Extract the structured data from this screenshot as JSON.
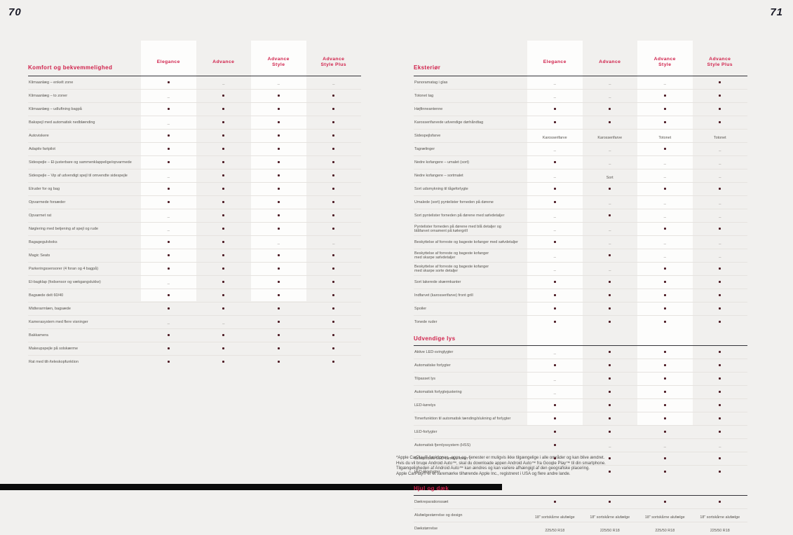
{
  "page": {
    "left_number": "70",
    "right_number": "71"
  },
  "accent_color": "#d0204a",
  "dot_color": "#4e1d26",
  "legend": {
    "included": "●",
    "not_available": "–"
  },
  "columns": [
    "Elegance",
    "Advance",
    "Advance\nStyle",
    "Advance\nStyle Plus"
  ],
  "left_table": {
    "section": "Komfort og bekvemmelighed",
    "rows": [
      {
        "label": "Klimaanlæg – enkelt zone",
        "values": [
          "●",
          "–",
          "–",
          "–"
        ]
      },
      {
        "label": "Klimaanlæg – to zoner",
        "values": [
          "–",
          "●",
          "●",
          "●"
        ]
      },
      {
        "label": "Klimaanlæg – udluftning bagpå",
        "values": [
          "●",
          "●",
          "●",
          "●"
        ]
      },
      {
        "label": "Bakspejl med automatisk nedblænding",
        "values": [
          "–",
          "●",
          "●",
          "●"
        ]
      },
      {
        "label": "Autoviskere",
        "values": [
          "●",
          "●",
          "●",
          "●"
        ]
      },
      {
        "label": "Adaptiv fartpilot",
        "values": [
          "●",
          "●",
          "●",
          "●"
        ]
      },
      {
        "label": "Sidespejle – El-justerbare og sammenklappelige/opvarmede",
        "values": [
          "●",
          "●",
          "●",
          "●"
        ]
      },
      {
        "label": "Sidespejle – Vip af udvendigt spejl til omvendte sidespejle",
        "values": [
          "–",
          "●",
          "●",
          "●"
        ]
      },
      {
        "label": "Elruder for og bag",
        "values": [
          "●",
          "●",
          "●",
          "●"
        ]
      },
      {
        "label": "Opvarmede forsæder",
        "values": [
          "●",
          "●",
          "●",
          "●"
        ]
      },
      {
        "label": "Opvarmet rat",
        "values": [
          "–",
          "●",
          "●",
          "●"
        ]
      },
      {
        "label": "Nøglering med betjening af spejl og rude",
        "values": [
          "–",
          "●",
          "●",
          "●"
        ]
      },
      {
        "label": "Bagagegulvboks",
        "values": [
          "●",
          "●",
          "–",
          "–"
        ]
      },
      {
        "label": "Magic Seats",
        "values": [
          "●",
          "●",
          "●",
          "●"
        ]
      },
      {
        "label": "Parkeringssensorer (4 foran og 4 bagpå)",
        "values": [
          "●",
          "●",
          "●",
          "●"
        ]
      },
      {
        "label": "El-bagklap (fodsensor og vækgangslukke)",
        "values": [
          "–",
          "●",
          "●",
          "●"
        ]
      },
      {
        "label": "Bagsæde delt 60/40",
        "values": [
          "●",
          "●",
          "●",
          "●"
        ]
      },
      {
        "label": "Midterarmlæn, bagsæde",
        "values": [
          "●",
          "●",
          "●",
          "●"
        ]
      },
      {
        "label": "Kamerasystem med flere visninger",
        "values": [
          "–",
          "–",
          "●",
          "●"
        ]
      },
      {
        "label": "Bakkamera",
        "values": [
          "●",
          "●",
          "●",
          "●"
        ]
      },
      {
        "label": "Makeupspejle på solskærme",
        "values": [
          "●",
          "●",
          "●",
          "●"
        ]
      },
      {
        "label": "Rat med tilt-/teleskopfunktion",
        "values": [
          "●",
          "●",
          "●",
          "●"
        ]
      }
    ]
  },
  "right_table": {
    "sections": [
      {
        "title": "Eksteriør",
        "with_column_headers": true,
        "rows": [
          {
            "label": "Panoramatag i glas",
            "values": [
              "–",
              "–",
              "–",
              "●"
            ]
          },
          {
            "label": "Totonet tag",
            "values": [
              "–",
              "–",
              "●",
              "●"
            ]
          },
          {
            "label": "Højfinneantenne",
            "values": [
              "●",
              "●",
              "●",
              "●"
            ]
          },
          {
            "label": "Karosserifarvede udvendige dørhåndtag",
            "values": [
              "●",
              "●",
              "●",
              "●"
            ]
          },
          {
            "label": "Sidespejlsfarve",
            "values": [
              "Karosserifarve",
              "Karosserifarve",
              "Totonet",
              "Totonet"
            ]
          },
          {
            "label": "Tagrælinger",
            "values": [
              "–",
              "–",
              "●",
              "–"
            ]
          },
          {
            "label": "Nedre kofangere – umalet (sort)",
            "values": [
              "●",
              "–",
              "–",
              "–"
            ]
          },
          {
            "label": "Nedre kofangere – sortmalet",
            "values": [
              "–",
              "Sort",
              "–",
              "–"
            ]
          },
          {
            "label": "Sort udsmykning til tågeforlygte",
            "values": [
              "●",
              "●",
              "●",
              "●"
            ]
          },
          {
            "label": "Umalede (sort) pyntelister forneden på dørene",
            "values": [
              "●",
              "–",
              "–",
              "–"
            ]
          },
          {
            "label": "Sort pyntelister forneden på dørene med sølvdetaljer",
            "values": [
              "–",
              "●",
              "–",
              "–"
            ]
          },
          {
            "label": "Pyntelister forneden på dørene med blå detaljer og\nblåfarvet ornament på kølergrill",
            "values": [
              "–",
              "–",
              "●",
              "●"
            ]
          },
          {
            "label": "Beskyttelse af forreste og bageste kofanger med sølvdetaljer",
            "values": [
              "●",
              "–",
              "–",
              "–"
            ]
          },
          {
            "label": "Beskyttelse af forreste og bageste kofanger\nmed skarpe sølvdetaljer",
            "values": [
              "–",
              "●",
              "–",
              "–"
            ]
          },
          {
            "label": "Beskyttelse af forreste og bageste kofanger\nmed skarpe sorte detaljer",
            "values": [
              "–",
              "–",
              "●",
              "●"
            ]
          },
          {
            "label": "Sort lakerede skærmkanter",
            "values": [
              "●",
              "●",
              "●",
              "●"
            ]
          },
          {
            "label": "Indfarvet (karosserifarve) front grill",
            "values": [
              "●",
              "●",
              "●",
              "●"
            ]
          },
          {
            "label": "Spoiler",
            "values": [
              "●",
              "●",
              "●",
              "●"
            ]
          },
          {
            "label": "Tonede ruder",
            "values": [
              "●",
              "●",
              "●",
              "●"
            ]
          }
        ]
      },
      {
        "title": "Udvendige lys",
        "with_column_headers": false,
        "rows": [
          {
            "label": "Aktive LED-svinglygter",
            "values": [
              "–",
              "●",
              "●",
              "●"
            ]
          },
          {
            "label": "Automatiske forlygter",
            "values": [
              "●",
              "●",
              "●",
              "●"
            ]
          },
          {
            "label": "Tilpasset lys",
            "values": [
              "–",
              "●",
              "●",
              "●"
            ]
          },
          {
            "label": "Automatisk forlygtejustering",
            "values": [
              "–",
              "●",
              "●",
              "●"
            ]
          },
          {
            "label": "LED-kørelys",
            "values": [
              "●",
              "●",
              "●",
              "●"
            ]
          },
          {
            "label": "Timerfunktion til automatisk tænding/slukning af forlygter",
            "values": [
              "●",
              "●",
              "●",
              "●"
            ]
          },
          {
            "label": "LED-forlygter",
            "values": [
              "●",
              "●",
              "●",
              "●"
            ]
          },
          {
            "label": "Automatisk fjernlyssystem (HSS)",
            "values": [
              "●",
              "–",
              "–",
              "–"
            ]
          },
          {
            "label": "Sekventielle LED-blinklys foran",
            "values": [
              "●",
              "●",
              "●",
              "●"
            ]
          },
          {
            "label": "LED-tågelygter",
            "values": [
              "–",
              "●",
              "●",
              "●"
            ]
          }
        ]
      },
      {
        "title": "Hjul og dæk",
        "with_column_headers": false,
        "rows": [
          {
            "label": "Dækreparationssæt",
            "values": [
              "●",
              "●",
              "●",
              "●"
            ]
          },
          {
            "label": "Alufælgestørrelse og design",
            "values": [
              "18\" sortskårne alufælge",
              "18\" sortskårne alufælge",
              "18\" sortskårne alufælge",
              "18\" sortskårne alufælge"
            ]
          },
          {
            "label": "Dækstørrelse",
            "values": [
              "225/50 R18",
              "225/50 R18",
              "225/50 R18",
              "225/50 R18"
            ]
          }
        ]
      }
    ]
  },
  "footnote": {
    "lines": [
      "*Apple CarPlay®-funktioner, -apps og -tjenester er muligvis ikke tilgængelige i alle områder og kan blive ændret.",
      "Hvis du vil bruge Android Auto™, skal du downloade appen Android Auto™ fra Google Play™ til din smartphone.",
      "Tilgængeligheden af Android Auto™ kan ændres og kan variere afhængigt af den geografiske placering.",
      "Apple CarPlay® er et varemærke tilhørende Apple Inc., registreret i USA og flere andre lande."
    ]
  }
}
